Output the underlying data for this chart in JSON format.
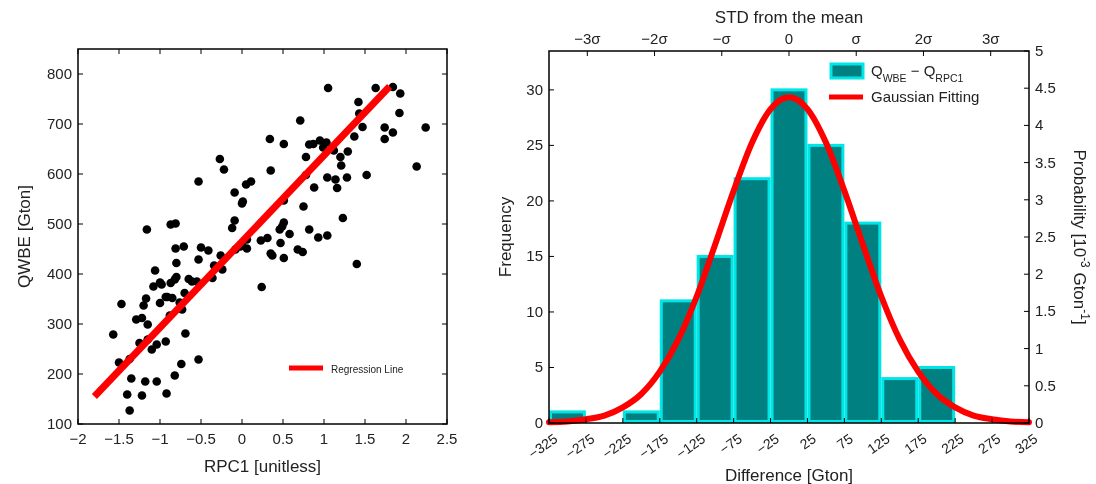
{
  "chart_data": [
    {
      "type": "scatter",
      "xlabel": "RPC1 [unitless]",
      "ylabel": "QWBE [Gton]",
      "xlim": [
        -2,
        2.5
      ],
      "ylim": [
        100,
        850
      ],
      "xticks": [
        -2,
        -1.5,
        -1,
        -0.5,
        0,
        0.5,
        1,
        1.5,
        2,
        2.5
      ],
      "yticks": [
        100,
        200,
        300,
        400,
        500,
        600,
        700,
        800
      ],
      "legend": "bottom right",
      "series": [
        {
          "color": "#000000",
          "marker": "circle",
          "x": [
            -1.16,
            -0.87,
            -0.81,
            -0.53,
            -0.27,
            -0.22,
            -0.09,
            0.0,
            0.01,
            0.05,
            0.11,
            -0.09,
            -0.12,
            -0.81,
            -0.71,
            -0.5,
            -0.41,
            -0.53,
            -0.8,
            -0.26,
            -0.34,
            -0.24,
            -0.36,
            -1.06,
            -1.08,
            -1.0,
            -0.98,
            -0.82,
            -0.8,
            -0.87,
            -0.65,
            -0.61,
            -0.55,
            -1.17,
            -1.0,
            -0.93,
            -0.91,
            -0.85,
            -0.76,
            -0.7,
            -1.47,
            -1.2,
            -1.29,
            -1.22,
            -1.15,
            -0.73,
            -0.88,
            -1.57,
            -1.25,
            -1.15,
            -1.04,
            -1.1,
            -0.93,
            -0.69,
            -1.5,
            -1.37,
            -0.53,
            -0.74,
            -1.35,
            -1.18,
            -1.04,
            -0.82,
            -1.4,
            -1.22,
            -0.92,
            -1.37,
            0.34,
            0.51,
            0.35,
            0.71,
            1.05,
            1.63,
            1.84,
            1.93,
            1.42,
            1.43,
            1.92,
            1.47,
            1.74,
            1.84,
            1.74,
            2.24,
            2.13,
            1.37,
            0.82,
            0.87,
            0.95,
            0.99,
            1.03,
            1.12,
            0.78,
            1.2,
            1.29,
            1.21,
            0.78,
            1.04,
            1.14,
            1.28,
            1.52,
            0.88,
            1.16,
            0.51,
            0.75,
            1.23,
            0.51,
            0.49,
            0.46,
            0.58,
            0.82,
            0.93,
            1.04,
            0.06,
            0.06,
            0.23,
            0.31,
            0.47,
            0.35,
            0.37,
            0.51,
            0.68,
            0.74,
            1.4,
            0.24,
            0.0,
            -0.02,
            -0.08
          ],
          "values": [
            489,
            499,
            501,
            585,
            630,
            609,
            563,
            541,
            545,
            579,
            585,
            507,
            492,
            451,
            455,
            453,
            447,
            429,
            422,
            437,
            417,
            409,
            392,
            407,
            375,
            383,
            379,
            389,
            394,
            382,
            390,
            385,
            385,
            351,
            342,
            354,
            354,
            352,
            343,
            362,
            340,
            337,
            309,
            312,
            299,
            329,
            317,
            279,
            262,
            269,
            259,
            249,
            265,
            281,
            223,
            230,
            229,
            220,
            191,
            185,
            185,
            197,
            159,
            157,
            161,
            127,
            670,
            660,
            607,
            707,
            772,
            772,
            774,
            761,
            744,
            721,
            722,
            694,
            693,
            683,
            670,
            693,
            615,
            675,
            659,
            660,
            667,
            653,
            663,
            647,
            634,
            634,
            645,
            617,
            598,
            593,
            589,
            593,
            598,
            573,
            572,
            547,
            535,
            512,
            503,
            495,
            489,
            480,
            489,
            473,
            477,
            469,
            451,
            467,
            472,
            462,
            441,
            437,
            432,
            449,
            444,
            420,
            374,
            457,
            455,
            449
          ]
        },
        {
          "type": "line",
          "name": "Regression Line",
          "color": "#ff0000",
          "x": [
            -1.8,
            1.8
          ],
          "values": [
            155,
            775
          ]
        }
      ]
    },
    {
      "type": "histogram",
      "xlabel": "Difference [Gton]",
      "ylabel": "Frequency",
      "y2label": "Probability [10$^{-3}$ Gton$^{-1}$]",
      "x2label": "STD from the mean",
      "legend": "top right",
      "bins": [
        -325,
        -275,
        -225,
        -175,
        -125,
        -75,
        -25,
        25,
        75,
        125,
        175,
        225,
        275,
        325
      ],
      "xlim": [
        -325,
        325
      ],
      "xticks": [
        -325,
        -275,
        -225,
        -175,
        -125,
        -75,
        -25,
        25,
        75,
        125,
        175,
        225,
        275,
        325
      ],
      "ylim": [
        0,
        33.5
      ],
      "yticks": [
        0,
        5,
        10,
        15,
        20,
        25,
        30
      ],
      "y2lim": [
        0,
        5
      ],
      "y2ticks": [
        0,
        0.5,
        1,
        1.5,
        2,
        2.5,
        3,
        3.5,
        4,
        4.5,
        5
      ],
      "x2lim": [
        -3.57,
        3.57
      ],
      "x2ticks": [
        {
          "value": -3,
          "label": "−3σ"
        },
        {
          "value": -2,
          "label": "−2σ"
        },
        {
          "value": -1,
          "label": "−σ"
        },
        0,
        {
          "value": 1,
          "label": "σ"
        },
        {
          "value": 2,
          "label": "2σ"
        },
        {
          "value": 3,
          "label": "3σ"
        }
      ],
      "series": [
        {
          "name": "Q$_{WBE}$ − Q$_{RPC1}$",
          "color": "#008080",
          "values": [
            1,
            0,
            1,
            11,
            15,
            22,
            30,
            25,
            18,
            4,
            5,
            0,
            0
          ]
        },
        {
          "type": "line",
          "name": "Gaussian Fitting",
          "color": "#ff0000",
          "axis": "y2",
          "x": [
            -325,
            -300,
            -275,
            -250,
            -225,
            -200,
            -175,
            -150,
            -125,
            -100,
            -75,
            -50,
            -25,
            0,
            25,
            50,
            75,
            100,
            125,
            150,
            175,
            200,
            225,
            250,
            275,
            300,
            325
          ],
          "values": [
            0.01,
            0.02,
            0.05,
            0.1,
            0.21,
            0.39,
            0.69,
            1.12,
            1.7,
            2.4,
            3.12,
            3.77,
            4.22,
            4.38,
            4.22,
            3.77,
            3.12,
            2.4,
            1.7,
            1.12,
            0.69,
            0.39,
            0.21,
            0.1,
            0.05,
            0.02,
            0.01
          ]
        }
      ]
    }
  ]
}
